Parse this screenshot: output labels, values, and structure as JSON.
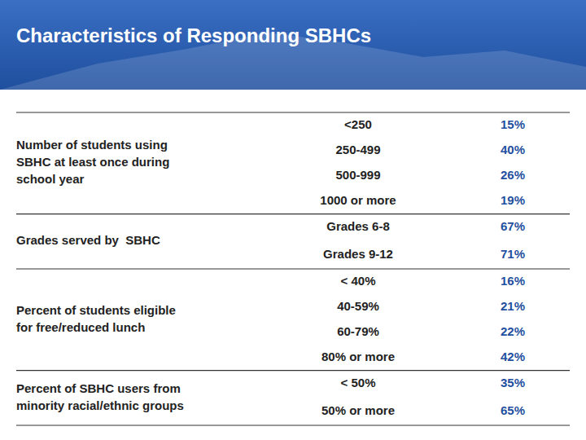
{
  "chart_data": {
    "type": "table",
    "title": "Characteristics of Responding SBHCs",
    "rows": [
      {
        "label": "Number of students using\nSBHC at least once during\nschool year",
        "categories": [
          "<250",
          "250-499",
          "500-999",
          "1000 or more"
        ],
        "values": [
          15,
          40,
          26,
          19
        ],
        "value_labels": [
          "15%",
          "40%",
          "26%",
          "19%"
        ]
      },
      {
        "label": "Grades served by  SBHC",
        "categories": [
          "Grades 6-8",
          "Grades 9-12"
        ],
        "values": [
          67,
          71
        ],
        "value_labels": [
          "67%",
          "71%"
        ]
      },
      {
        "label": "Percent of students eligible\nfor free/reduced lunch",
        "categories": [
          "< 40%",
          "40-59%",
          "60-79%",
          "80% or more"
        ],
        "values": [
          16,
          21,
          22,
          42
        ],
        "value_labels": [
          "16%",
          "21%",
          "22%",
          "42%"
        ]
      },
      {
        "label": "Percent of SBHC users from\nminority racial/ethnic groups",
        "categories": [
          "< 50%",
          "50% or more"
        ],
        "values": [
          35,
          65
        ],
        "value_labels": [
          "35%",
          "65%"
        ]
      }
    ]
  }
}
